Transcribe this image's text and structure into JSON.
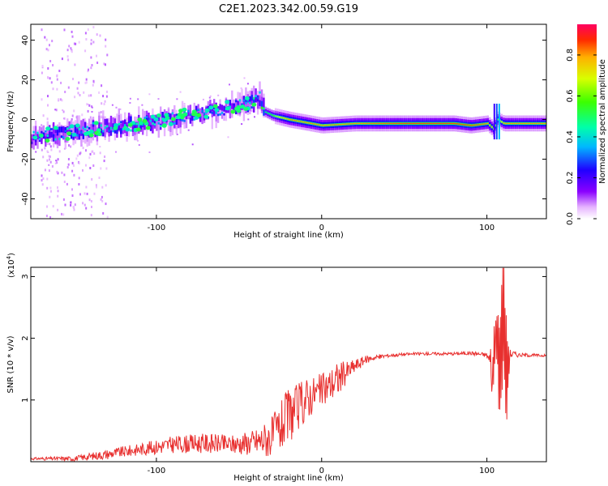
{
  "title": "C2E1.2023.342.00.59.G19",
  "chart_data": [
    {
      "type": "heatmap",
      "name": "spectrogram",
      "xlabel": "Height of straight line (km)",
      "ylabel": "Frequency (Hz)",
      "xlim": [
        -176,
        136
      ],
      "ylim": [
        -50,
        48
      ],
      "xticks": [
        -100,
        0,
        100
      ],
      "yticks": [
        -40,
        -20,
        0,
        20,
        40
      ],
      "colorbar": {
        "label": "Normalized spectral amplitude",
        "range": [
          0.0,
          0.95
        ],
        "ticks": [
          0.0,
          0.2,
          0.4,
          0.6,
          0.8
        ]
      },
      "ridge": {
        "description": "frequency vs height of dominant signal",
        "x": [
          -176,
          -160,
          -140,
          -120,
          -100,
          -80,
          -60,
          -45,
          -38,
          -35,
          -30,
          -25,
          -20,
          0,
          20,
          50,
          80,
          90,
          100,
          104,
          106,
          110,
          120,
          136
        ],
        "y": [
          -9,
          -7,
          -5,
          -3,
          -1,
          2,
          5,
          8,
          11,
          4,
          2,
          1,
          0,
          -3,
          -2,
          -2,
          -2,
          -3,
          -2,
          -5,
          0,
          -2,
          -2,
          -2
        ],
        "amplitude": [
          0.3,
          0.35,
          0.35,
          0.35,
          0.35,
          0.3,
          0.3,
          0.35,
          0.45,
          0.5,
          0.6,
          0.8,
          0.85,
          0.85,
          0.85,
          0.9,
          0.9,
          0.9,
          0.85,
          0.8,
          0.7,
          0.85,
          0.85,
          0.85
        ]
      }
    },
    {
      "type": "line",
      "name": "snr",
      "xlabel": "Height of straight line (km)",
      "ylabel": "SNR (10 * v/v)",
      "y_multiplier": "(x10",
      "y_multiplier_exp": "4",
      "y_multiplier_close": ")",
      "xlim": [
        -176,
        136
      ],
      "ylim": [
        0,
        3.15
      ],
      "xticks": [
        -100,
        0,
        100
      ],
      "yticks": [
        1,
        2,
        3
      ],
      "series": [
        {
          "name": "SNR",
          "color": "#e8302f",
          "x": [
            -176,
            -150,
            -130,
            -110,
            -90,
            -70,
            -55,
            -40,
            -30,
            -25,
            -20,
            -15,
            -10,
            -5,
            0,
            5,
            10,
            15,
            20,
            25,
            30,
            40,
            50,
            60,
            70,
            80,
            90,
            100,
            104,
            106,
            108,
            110,
            112,
            114,
            120,
            136
          ],
          "y": [
            0.05,
            0.05,
            0.12,
            0.2,
            0.28,
            0.3,
            0.28,
            0.32,
            0.4,
            0.55,
            0.75,
            0.85,
            1.0,
            1.1,
            1.15,
            1.25,
            1.35,
            1.45,
            1.55,
            1.63,
            1.68,
            1.72,
            1.74,
            1.75,
            1.75,
            1.75,
            1.76,
            1.73,
            1.5,
            2.2,
            1.3,
            2.6,
            1.2,
            1.75,
            1.73,
            1.72
          ],
          "noise": [
            0.02,
            0.04,
            0.08,
            0.1,
            0.14,
            0.16,
            0.15,
            0.22,
            0.35,
            0.4,
            0.45,
            0.4,
            0.38,
            0.3,
            0.28,
            0.28,
            0.3,
            0.18,
            0.12,
            0.08,
            0.05,
            0.03,
            0.025,
            0.025,
            0.025,
            0.025,
            0.03,
            0.04,
            0.6,
            0.9,
            0.8,
            0.9,
            0.6,
            0.08,
            0.03,
            0.02
          ]
        }
      ]
    }
  ]
}
